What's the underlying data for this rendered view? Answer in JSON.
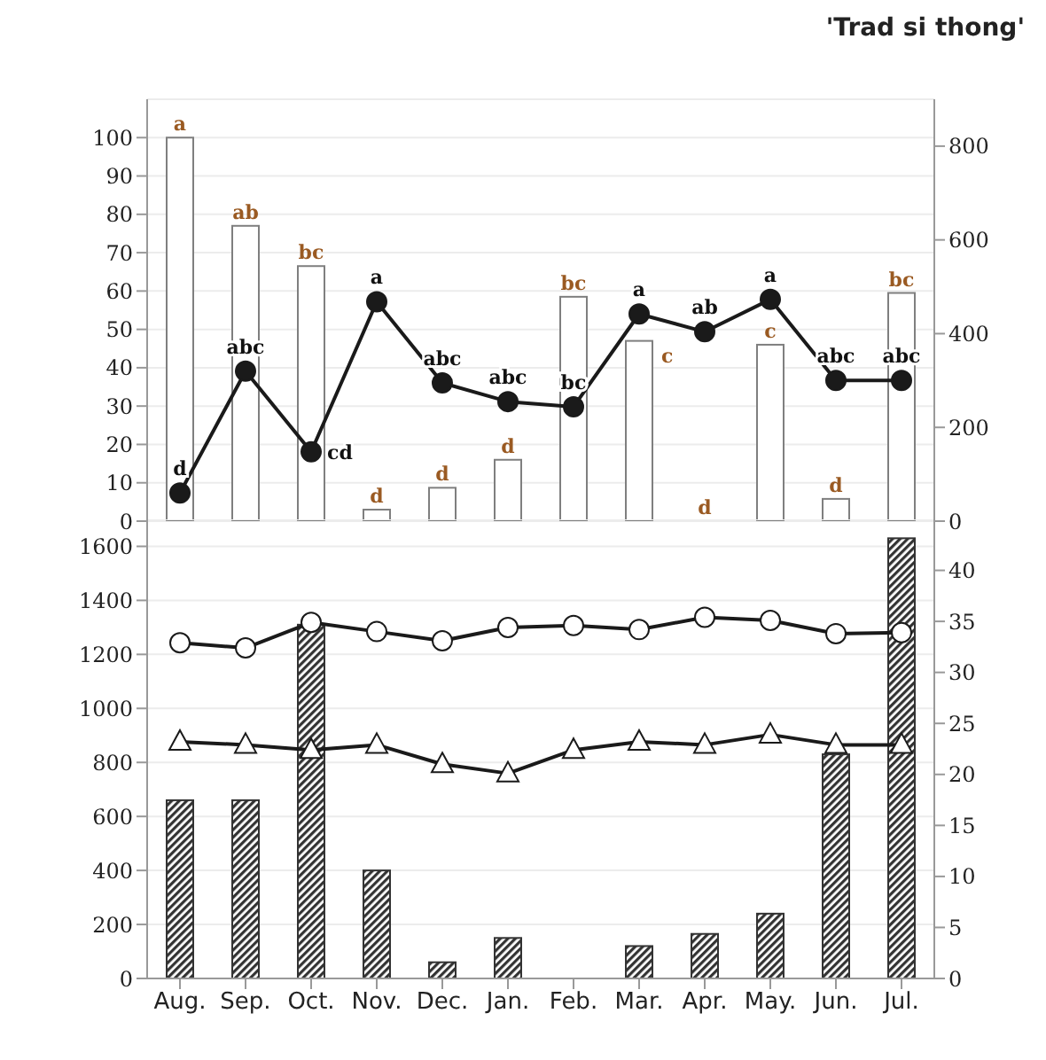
{
  "chart_data": [
    {
      "type": "bar",
      "title": "'Trad si thong'",
      "categories": [
        null,
        null,
        null,
        null,
        null,
        null,
        null,
        null,
        null,
        null,
        null,
        null
      ],
      "series": [
        {
          "color": "#7f7f7f",
          "values": [
            100,
            77,
            66.5,
            3,
            8.7,
            16,
            58.5,
            47,
            0,
            46,
            5.8,
            59.5
          ],
          "value_labels": [
            "a",
            "ab",
            "bc",
            "d",
            "d",
            "d",
            "bc",
            "c",
            "d",
            "c",
            "d",
            "bc"
          ]
        },
        {
          "type": "line",
          "axis": "y2",
          "color": "#1a1a1a",
          "marker": "circle",
          "values": [
            60,
            320,
            148,
            468,
            295,
            255,
            244,
            442,
            404,
            473,
            300,
            300
          ],
          "value_labels": [
            "d",
            "abc",
            "cd",
            "a",
            "abc",
            "abc",
            "bc",
            "a",
            "ab",
            "a",
            "abc",
            "abc"
          ]
        }
      ],
      "ylim": [
        0,
        110
      ],
      "yticks": [
        0,
        10,
        20,
        30,
        40,
        50,
        60,
        70,
        80,
        90,
        100
      ],
      "y2lim": [
        0,
        900
      ],
      "y2ticks": [
        0,
        200,
        400,
        600,
        800
      ],
      "grid": "y",
      "tick_labels": "y"
    },
    {
      "type": "bar",
      "categories": [
        "Aug.",
        "Sep.",
        "Oct.",
        "Nov.",
        "Dec.",
        "Jan.",
        "Feb.",
        "Mar.",
        "Apr.",
        "May.",
        "Jun.",
        "Jul."
      ],
      "series": [
        {
          "color": "#333333",
          "values": [
            660,
            660,
            1310,
            400,
            60,
            150,
            0,
            120,
            165,
            240,
            830,
            1630
          ]
        },
        {
          "type": "line",
          "axis": "y2",
          "color": "#1a1a1a",
          "marker": "circle",
          "values": [
            32.9,
            32.4,
            34.9,
            34.0,
            33.1,
            34.4,
            34.6,
            34.2,
            35.4,
            35.1,
            33.8,
            33.9
          ]
        },
        {
          "type": "line",
          "axis": "y2",
          "color": "#1a1a1a",
          "marker": "triangle",
          "values": [
            23.2,
            22.9,
            22.4,
            22.9,
            21.0,
            20.1,
            22.4,
            23.2,
            22.9,
            23.9,
            22.9,
            22.9
          ]
        }
      ],
      "ylim": [
        0,
        1700
      ],
      "yticks": [
        0,
        200,
        400,
        600,
        800,
        1000,
        1200,
        1400,
        1600
      ],
      "y2lim": [
        0,
        45
      ],
      "y2ticks": [
        0,
        5,
        10,
        15,
        20,
        25,
        30,
        35,
        40
      ],
      "grid": "y"
    }
  ]
}
